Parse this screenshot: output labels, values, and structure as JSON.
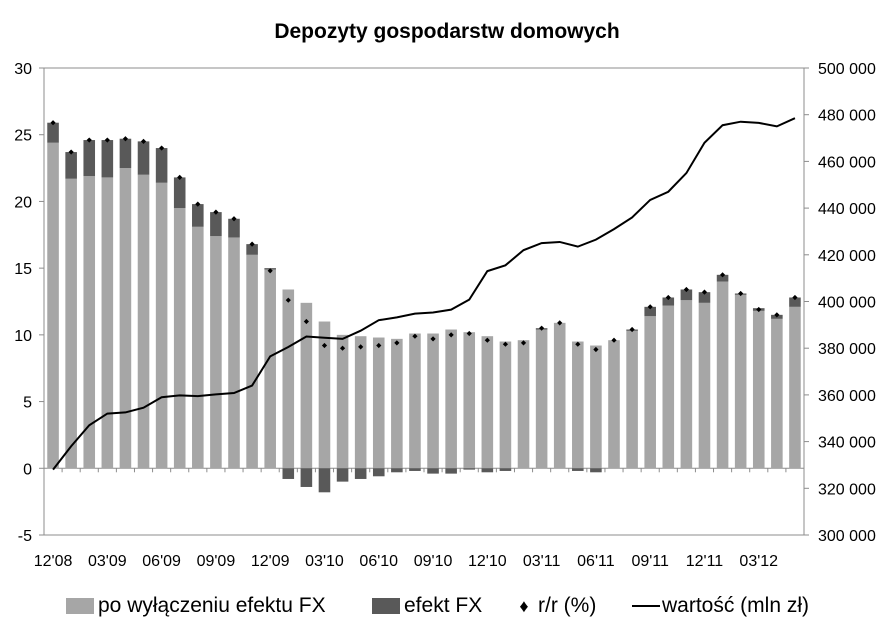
{
  "chart_data": {
    "type": "bar",
    "title": "Depozyty gospodarstw domowych",
    "x_tick_labels": [
      "12'08",
      "03'09",
      "06'09",
      "09'09",
      "12'09",
      "03'10",
      "06'10",
      "09'10",
      "12'10",
      "03'11",
      "06'11",
      "09'11",
      "12'11",
      "03'12"
    ],
    "y_left": {
      "min": -5,
      "max": 30,
      "ticks": [
        "-5",
        "0",
        "5",
        "10",
        "15",
        "20",
        "25",
        "30"
      ]
    },
    "y_right": {
      "min": 300000,
      "max": 500000,
      "ticks": [
        "300 000",
        "320 000",
        "340 000",
        "360 000",
        "380 000",
        "400 000",
        "420 000",
        "440 000",
        "460 000",
        "480 000",
        "500 000"
      ]
    },
    "grid": false,
    "legend_position": "bottom",
    "series": [
      {
        "name": "po wyłączeniu efektu FX",
        "kind": "stacked-bar",
        "color": "#a6a6a6",
        "axis": "left",
        "values": [
          24.4,
          21.7,
          21.9,
          21.8,
          22.5,
          22.0,
          21.4,
          19.5,
          18.1,
          17.4,
          17.3,
          16.0,
          14.9,
          13.4,
          12.4,
          11.0,
          10.0,
          9.9,
          9.8,
          9.7,
          10.1,
          10.1,
          10.4,
          10.2,
          9.9,
          9.5,
          9.6,
          10.4,
          10.9,
          9.5,
          9.2,
          9.6,
          10.3,
          11.4,
          12.2,
          12.6,
          12.4,
          14.0,
          13.0,
          11.8,
          11.2,
          12.1
        ]
      },
      {
        "name": "efekt FX",
        "kind": "stacked-bar",
        "color": "#595959",
        "axis": "left",
        "values": [
          1.5,
          2.0,
          2.7,
          2.8,
          2.2,
          2.5,
          2.6,
          2.3,
          1.7,
          1.8,
          1.4,
          0.8,
          0.1,
          -0.8,
          -1.4,
          -1.8,
          -1.0,
          -0.8,
          -0.6,
          -0.3,
          -0.2,
          -0.4,
          -0.4,
          -0.1,
          -0.3,
          -0.2,
          0.0,
          0.1,
          0.0,
          -0.2,
          -0.3,
          0.0,
          0.1,
          0.7,
          0.6,
          0.8,
          0.8,
          0.5,
          0.1,
          0.2,
          0.3,
          0.7
        ]
      },
      {
        "name": "r/r (%)",
        "kind": "dot",
        "color": "#000000",
        "axis": "left",
        "values": [
          25.9,
          23.7,
          24.6,
          24.6,
          24.7,
          24.5,
          24.0,
          21.8,
          19.8,
          19.2,
          18.7,
          16.8,
          14.8,
          12.6,
          11.0,
          9.2,
          9.0,
          9.1,
          9.2,
          9.4,
          9.9,
          9.7,
          10.0,
          10.1,
          9.6,
          9.3,
          9.4,
          10.5,
          10.9,
          9.3,
          8.9,
          9.6,
          10.4,
          12.1,
          12.8,
          13.4,
          13.2,
          14.5,
          13.1,
          11.9,
          11.5,
          12.8
        ]
      },
      {
        "name": "wartość (mln zł)",
        "kind": "line",
        "color": "#000000",
        "axis": "right",
        "values": [
          328000,
          338000,
          347000,
          352000,
          352500,
          354500,
          359000,
          359800,
          359500,
          360200,
          360800,
          364000,
          376500,
          380500,
          385000,
          384500,
          384000,
          387500,
          392000,
          393200,
          394800,
          395300,
          396500,
          400800,
          413000,
          415500,
          422000,
          425000,
          425500,
          423500,
          426500,
          431000,
          436000,
          443500,
          447000,
          455000,
          468000,
          475500,
          477000,
          476500,
          475000,
          478500
        ]
      }
    ]
  }
}
